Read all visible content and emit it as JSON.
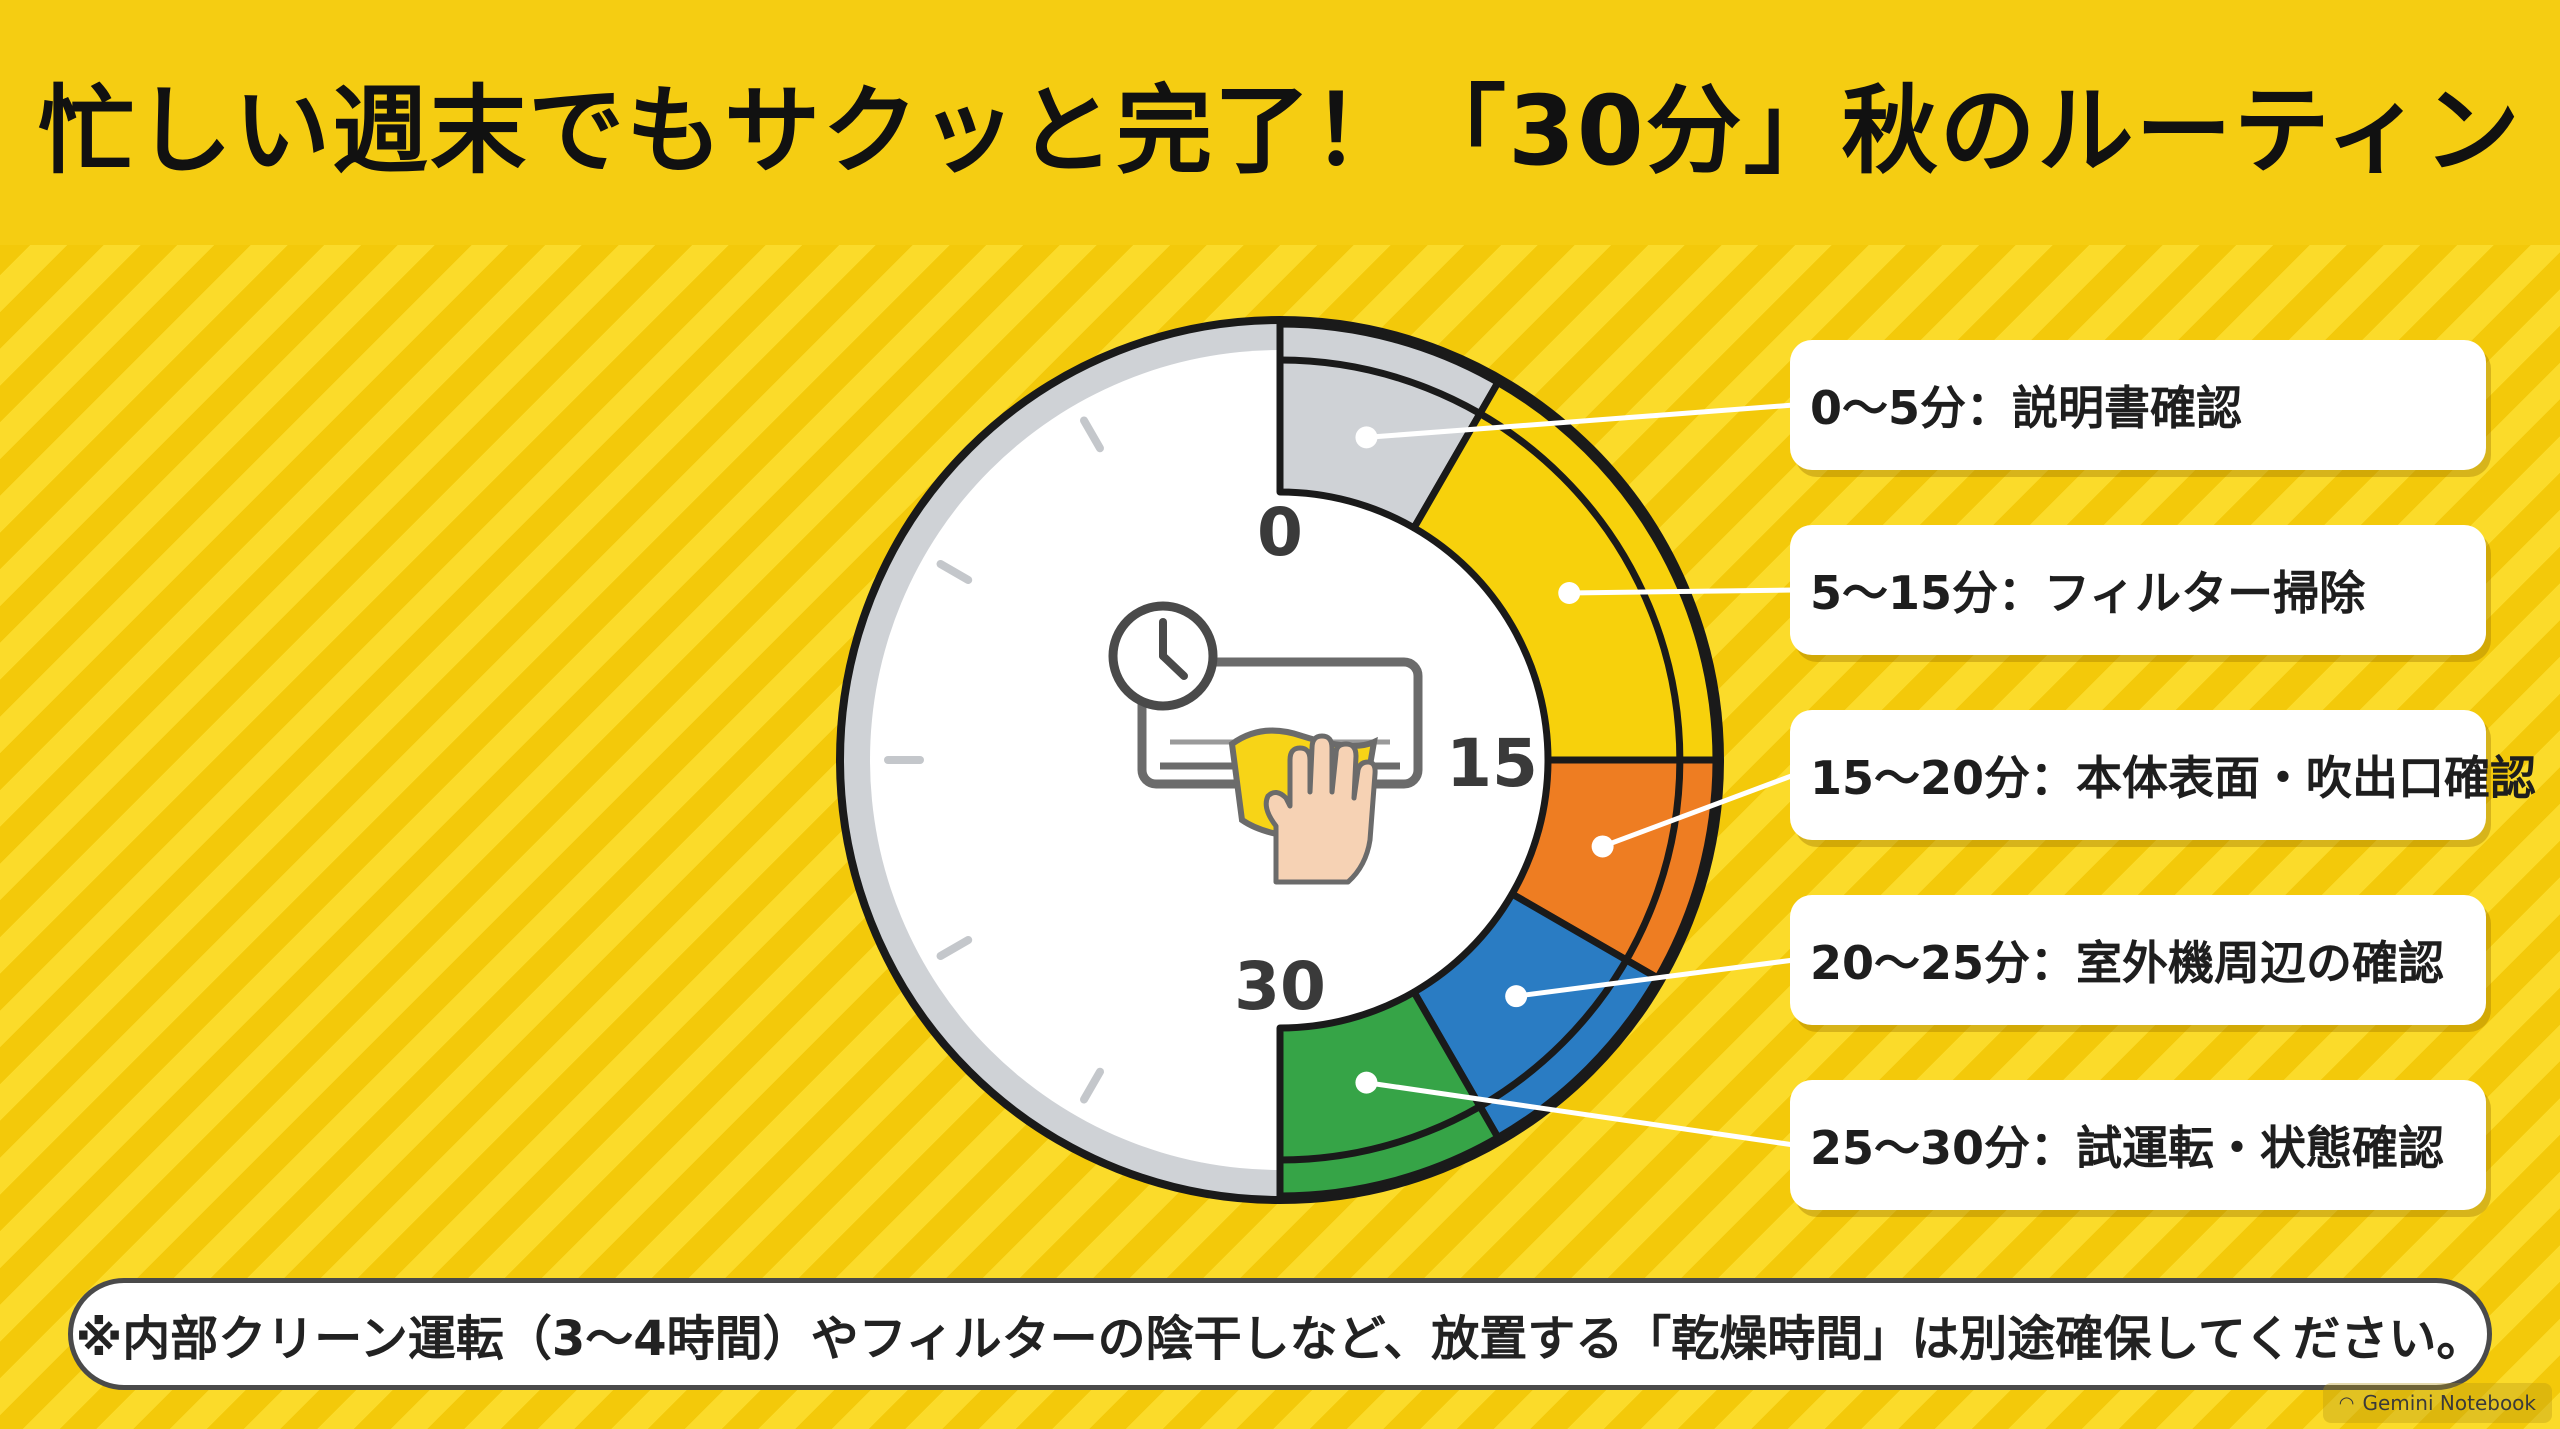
{
  "title": "忙しい週末でもサクッと完了！「30分」秋のルーティン",
  "clock": {
    "tick_labels": [
      "0",
      "15",
      "30"
    ]
  },
  "chart_data": {
    "type": "pie",
    "unit": "分",
    "segments": [
      {
        "start": 0,
        "end": 5,
        "label": "0〜5分：説明書確認",
        "color": "#cfd2d6"
      },
      {
        "start": 5,
        "end": 15,
        "label": "5〜15分：フィルター掃除",
        "color": "#f7d10c"
      },
      {
        "start": 15,
        "end": 20,
        "label": "15〜20分：本体表面・吹出口確認",
        "color": "#ee7d22"
      },
      {
        "start": 20,
        "end": 25,
        "label": "20〜25分：室外機周辺の確認",
        "color": "#2a7cc3"
      },
      {
        "start": 25,
        "end": 30,
        "label": "25〜30分：試運転・状態確認",
        "color": "#36a447"
      }
    ]
  },
  "note": "※内部クリーン運転（3〜4時間）やフィルターの陰干しなど、放置する「乾燥時間」は別途確保してください。",
  "watermark": "Gemini Notebook"
}
